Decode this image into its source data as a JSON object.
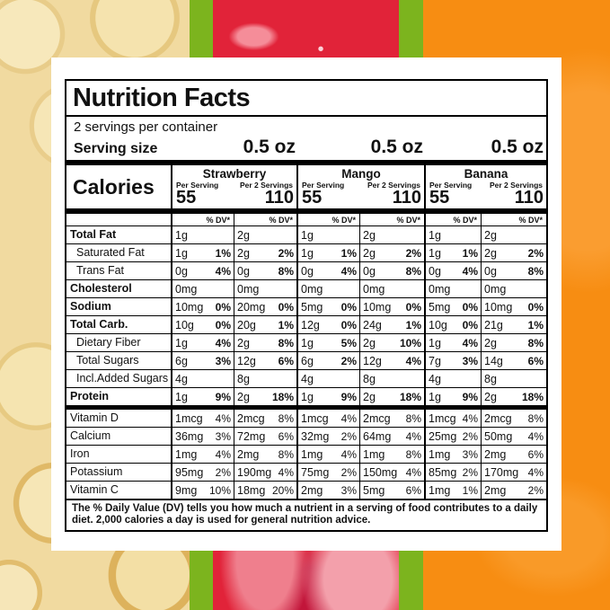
{
  "background": {
    "banana_strip": "banana-slices-photo",
    "strawberry_strip": "strawberry-closeup-photo",
    "orange_strip": "mango-pieces-photo",
    "divider_color": "#7cb41e",
    "banana_base_color": "#f1daa0",
    "strawberry_base_color": "#e12339",
    "orange_base_color": "#f78d12"
  },
  "label": {
    "title": "Nutrition Facts",
    "servings_per_container": "2 servings per container",
    "serving_size_label": "Serving size",
    "calories_label": "Calories",
    "dv_column_header": "% DV*",
    "flavors": [
      {
        "name": "Strawberry",
        "serving_size": "0.5 oz",
        "per_serving_label": "Per Serving",
        "per_2_servings_label": "Per 2 Servings",
        "calories_per_serving": "55",
        "calories_per_2_servings": "110"
      },
      {
        "name": "Mango",
        "serving_size": "0.5 oz",
        "per_serving_label": "Per Serving",
        "per_2_servings_label": "Per 2 Servings",
        "calories_per_serving": "55",
        "calories_per_2_servings": "110"
      },
      {
        "name": "Banana",
        "serving_size": "0.5 oz",
        "per_serving_label": "Per Serving",
        "per_2_servings_label": "Per 2 Servings",
        "calories_per_serving": "55",
        "calories_per_2_servings": "110"
      }
    ],
    "column_order": [
      "Strawberry Per Serving",
      "Strawberry Per 2 Servings",
      "Mango Per Serving",
      "Mango Per 2 Servings",
      "Banana Per Serving",
      "Banana Per 2 Servings"
    ],
    "nutrient_rows": [
      {
        "name": "Total Fat",
        "style": "bold",
        "cells": [
          {
            "amount": "1g",
            "dv": ""
          },
          {
            "amount": "2g",
            "dv": ""
          },
          {
            "amount": "1g",
            "dv": ""
          },
          {
            "amount": "2g",
            "dv": ""
          },
          {
            "amount": "1g",
            "dv": ""
          },
          {
            "amount": "2g",
            "dv": ""
          }
        ]
      },
      {
        "name": "Saturated Fat",
        "style": "indent",
        "cells": [
          {
            "amount": "1g",
            "dv": "1%"
          },
          {
            "amount": "2g",
            "dv": "2%"
          },
          {
            "amount": "1g",
            "dv": "1%"
          },
          {
            "amount": "2g",
            "dv": "2%"
          },
          {
            "amount": "1g",
            "dv": "1%"
          },
          {
            "amount": "2g",
            "dv": "2%"
          }
        ]
      },
      {
        "name": "Trans Fat",
        "style": "indent",
        "cells": [
          {
            "amount": "0g",
            "dv": "4%"
          },
          {
            "amount": "0g",
            "dv": "8%"
          },
          {
            "amount": "0g",
            "dv": "4%"
          },
          {
            "amount": "0g",
            "dv": "8%"
          },
          {
            "amount": "0g",
            "dv": "4%"
          },
          {
            "amount": "0g",
            "dv": "8%"
          }
        ]
      },
      {
        "name": "Cholesterol",
        "style": "bold",
        "cells": [
          {
            "amount": "0mg",
            "dv": ""
          },
          {
            "amount": "0mg",
            "dv": ""
          },
          {
            "amount": "0mg",
            "dv": ""
          },
          {
            "amount": "0mg",
            "dv": ""
          },
          {
            "amount": "0mg",
            "dv": ""
          },
          {
            "amount": "0mg",
            "dv": ""
          }
        ]
      },
      {
        "name": "Sodium",
        "style": "bold",
        "cells": [
          {
            "amount": "10mg",
            "dv": "0%"
          },
          {
            "amount": "20mg",
            "dv": "0%"
          },
          {
            "amount": "5mg",
            "dv": "0%"
          },
          {
            "amount": "10mg",
            "dv": "0%"
          },
          {
            "amount": "5mg",
            "dv": "0%"
          },
          {
            "amount": "10mg",
            "dv": "0%"
          }
        ]
      },
      {
        "name": "Total Carb.",
        "style": "bold",
        "cells": [
          {
            "amount": "10g",
            "dv": "0%"
          },
          {
            "amount": "20g",
            "dv": "1%"
          },
          {
            "amount": "12g",
            "dv": "0%"
          },
          {
            "amount": "24g",
            "dv": "1%"
          },
          {
            "amount": "10g",
            "dv": "0%"
          },
          {
            "amount": "21g",
            "dv": "1%"
          }
        ]
      },
      {
        "name": "Dietary Fiber",
        "style": "indent",
        "cells": [
          {
            "amount": "1g",
            "dv": "4%"
          },
          {
            "amount": "2g",
            "dv": "8%"
          },
          {
            "amount": "1g",
            "dv": "5%"
          },
          {
            "amount": "2g",
            "dv": "10%"
          },
          {
            "amount": "1g",
            "dv": "4%"
          },
          {
            "amount": "2g",
            "dv": "8%"
          }
        ]
      },
      {
        "name": "Total Sugars",
        "style": "indent",
        "cells": [
          {
            "amount": "6g",
            "dv": "3%"
          },
          {
            "amount": "12g",
            "dv": "6%"
          },
          {
            "amount": "6g",
            "dv": "2%"
          },
          {
            "amount": "12g",
            "dv": "4%"
          },
          {
            "amount": "7g",
            "dv": "3%"
          },
          {
            "amount": "14g",
            "dv": "6%"
          }
        ]
      },
      {
        "name": "Incl.Added Sugars",
        "style": "indent",
        "cells": [
          {
            "amount": "4g",
            "dv": ""
          },
          {
            "amount": "8g",
            "dv": ""
          },
          {
            "amount": "4g",
            "dv": ""
          },
          {
            "amount": "8g",
            "dv": ""
          },
          {
            "amount": "4g",
            "dv": ""
          },
          {
            "amount": "8g",
            "dv": ""
          }
        ]
      },
      {
        "name": "Protein",
        "style": "bold",
        "cells": [
          {
            "amount": "1g",
            "dv": "9%"
          },
          {
            "amount": "2g",
            "dv": "18%"
          },
          {
            "amount": "1g",
            "dv": "9%"
          },
          {
            "amount": "2g",
            "dv": "18%"
          },
          {
            "amount": "1g",
            "dv": "9%"
          },
          {
            "amount": "2g",
            "dv": "18%"
          }
        ]
      }
    ],
    "vitamin_rows": [
      {
        "name": "Vitamin D",
        "cells": [
          {
            "amount": "1mcg",
            "dv": "4%"
          },
          {
            "amount": "2mcg",
            "dv": "8%"
          },
          {
            "amount": "1mcg",
            "dv": "4%"
          },
          {
            "amount": "2mcg",
            "dv": "8%"
          },
          {
            "amount": "1mcg",
            "dv": "4%"
          },
          {
            "amount": "2mcg",
            "dv": "8%"
          }
        ]
      },
      {
        "name": "Calcium",
        "cells": [
          {
            "amount": "36mg",
            "dv": "3%"
          },
          {
            "amount": "72mg",
            "dv": "6%"
          },
          {
            "amount": "32mg",
            "dv": "2%"
          },
          {
            "amount": "64mg",
            "dv": "4%"
          },
          {
            "amount": "25mg",
            "dv": "2%"
          },
          {
            "amount": "50mg",
            "dv": "4%"
          }
        ]
      },
      {
        "name": "Iron",
        "cells": [
          {
            "amount": "1mg",
            "dv": "4%"
          },
          {
            "amount": "2mg",
            "dv": "8%"
          },
          {
            "amount": "1mg",
            "dv": "4%"
          },
          {
            "amount": "1mg",
            "dv": "8%"
          },
          {
            "amount": "1mg",
            "dv": "3%"
          },
          {
            "amount": "2mg",
            "dv": "6%"
          }
        ]
      },
      {
        "name": "Potassium",
        "cells": [
          {
            "amount": "95mg",
            "dv": "2%"
          },
          {
            "amount": "190mg",
            "dv": "4%"
          },
          {
            "amount": "75mg",
            "dv": "2%"
          },
          {
            "amount": "150mg",
            "dv": "4%"
          },
          {
            "amount": "85mg",
            "dv": "2%"
          },
          {
            "amount": "170mg",
            "dv": "4%"
          }
        ]
      },
      {
        "name": "Vitamin C",
        "cells": [
          {
            "amount": "9mg",
            "dv": "10%"
          },
          {
            "amount": "18mg",
            "dv": "20%"
          },
          {
            "amount": "2mg",
            "dv": "3%"
          },
          {
            "amount": "5mg",
            "dv": "6%"
          },
          {
            "amount": "1mg",
            "dv": "1%"
          },
          {
            "amount": "2mg",
            "dv": "2%"
          }
        ]
      }
    ],
    "footnote": "The % Daily Value (DV) tells you how much a nutrient in a serving of food contributes to a daily diet. 2,000 calories a day is used for general nutrition advice."
  }
}
